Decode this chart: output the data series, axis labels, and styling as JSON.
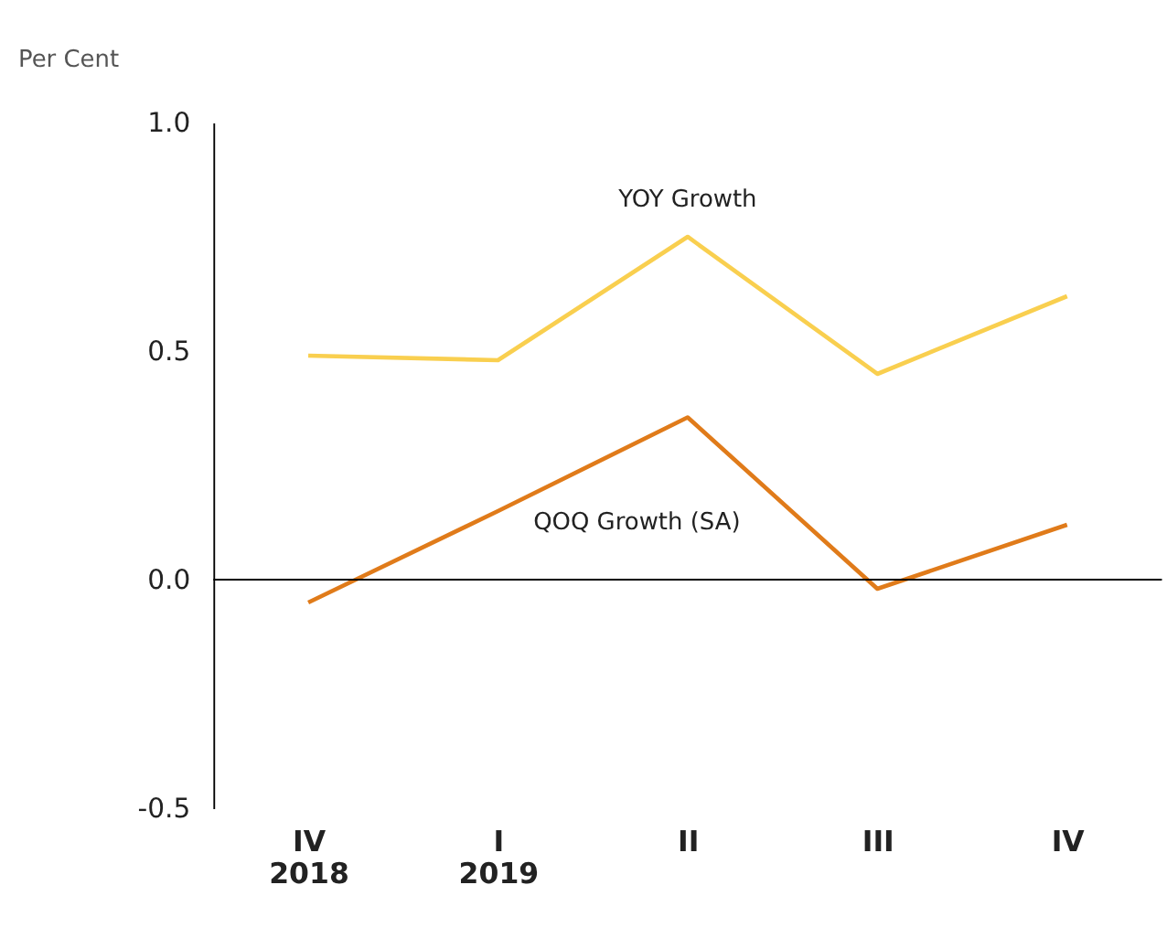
{
  "chart_data": {
    "type": "line",
    "ylabel": "Per Cent",
    "categories": [
      "IV\n2018",
      "I\n2019",
      "II",
      "III",
      "IV"
    ],
    "series": [
      {
        "name": "YOY Growth",
        "color": "#f9cf4f",
        "values": [
          0.49,
          0.48,
          0.75,
          0.45,
          0.62
        ]
      },
      {
        "name": "QOQ Growth (SA)",
        "color": "#e07b1a",
        "values": [
          -0.05,
          0.15,
          0.355,
          -0.02,
          0.12
        ]
      }
    ],
    "ylim": [
      -0.5,
      1.0
    ],
    "yticks": [
      {
        "value": -0.5,
        "label": "-0.5"
      },
      {
        "value": 0,
        "label": "0.0"
      },
      {
        "value": 0.5,
        "label": "0.5"
      },
      {
        "value": 1.0,
        "label": "1.0"
      }
    ],
    "ref_lines": [
      {
        "axis": "y",
        "value": 0,
        "color": "#000000"
      }
    ],
    "grid": false,
    "legend": false,
    "marker": "none",
    "line_style": "solid"
  }
}
